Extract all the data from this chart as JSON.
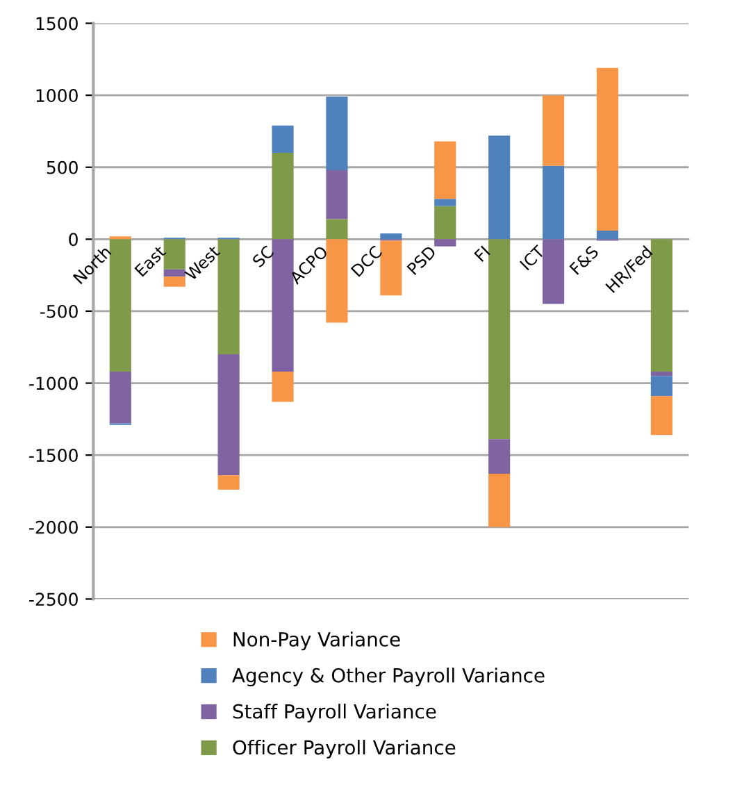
{
  "chart_data": {
    "type": "bar",
    "stacked": true,
    "categories": [
      "North",
      "East",
      "West",
      "SC",
      "ACPO",
      "DCC",
      "PSD",
      "FI",
      "ICT",
      "F&S",
      "HR/Fed"
    ],
    "series": [
      {
        "name": "Officer Payroll Variance",
        "color": "#7f9a48",
        "values": [
          -920,
          -210,
          -800,
          600,
          140,
          0,
          230,
          -1390,
          0,
          0,
          -920
        ]
      },
      {
        "name": "Staff Payroll Variance",
        "color": "#8064a2",
        "values": [
          -360,
          -50,
          -840,
          -920,
          340,
          -10,
          -50,
          -240,
          -450,
          -10,
          -30
        ]
      },
      {
        "name": "Agency & Other Payroll Variance",
        "color": "#4f81bd",
        "values": [
          -10,
          10,
          10,
          190,
          510,
          40,
          50,
          720,
          510,
          60,
          -140
        ]
      },
      {
        "name": "Non-Pay Variance",
        "color": "#f79646",
        "values": [
          20,
          -70,
          -100,
          -210,
          -580,
          -380,
          400,
          -370,
          490,
          1130,
          -270
        ]
      }
    ],
    "ylim": [
      -2500,
      1500
    ],
    "yticks": [
      -2500,
      -2000,
      -1500,
      -1000,
      -500,
      0,
      500,
      1000,
      1500
    ],
    "grid": "y",
    "legend": "bottom"
  }
}
